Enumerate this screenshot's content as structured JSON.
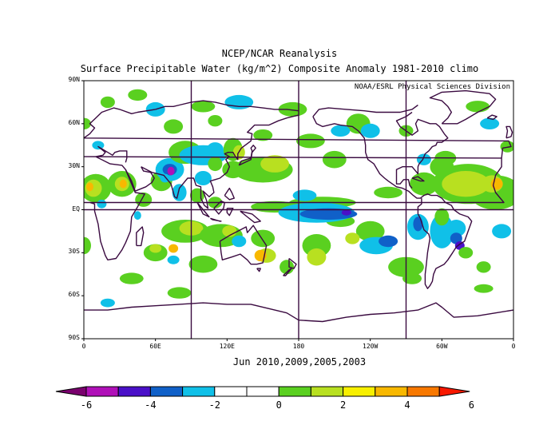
{
  "title": "NCEP/NCAR Reanalysis",
  "subtitle": "Surface Precipitable Water (kg/m^2) Composite Anomaly 1981-2010 climo",
  "credit": "NOAA/ESRL Physical Sciences Division",
  "period": "Jun 2010,2009,2005,2003",
  "lat_labels": [
    "90N",
    "60N",
    "30N",
    "EQ",
    "30S",
    "60S",
    "90S"
  ],
  "lon_labels": [
    "0",
    "60E",
    "120E",
    "180",
    "120W",
    "60W",
    "0"
  ],
  "colorbar": {
    "labels": [
      "-6",
      "-4",
      "-2",
      "0",
      "2",
      "4",
      "6"
    ],
    "colors": [
      "#7a006e",
      "#b010b8",
      "#4a10c8",
      "#1060c8",
      "#10c0e8",
      "#ffffff",
      "#ffffff",
      "#5ad020",
      "#b8e020",
      "#f8f000",
      "#f8b800",
      "#f87800",
      "#f81800"
    ]
  },
  "chart_data": {
    "type": "heatmap",
    "title": "NCEP/NCAR Reanalysis",
    "subtitle": "Surface Precipitable Water (kg/m^2) Composite Anomaly 1981-2010 climo",
    "xlabel": "",
    "ylabel": "",
    "x_range": [
      0,
      360
    ],
    "y_range": [
      -90,
      90
    ],
    "color_range": [
      -6,
      6
    ],
    "contour_interval": 1,
    "grid": true,
    "gridlines": {
      "lon": [
        90,
        180,
        270
      ],
      "lat": [
        0
      ]
    }
  }
}
